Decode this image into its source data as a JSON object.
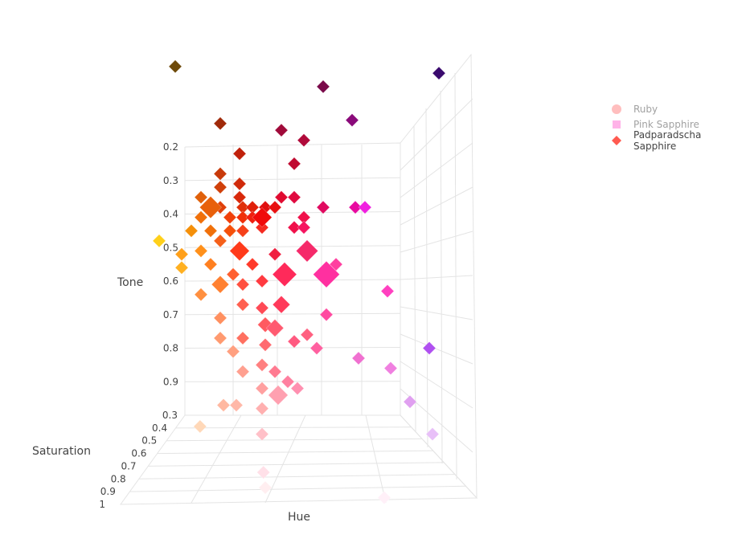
{
  "chart_data": {
    "type": "scatter3d",
    "axes": {
      "x": {
        "title": "Hue",
        "ticks": []
      },
      "y": {
        "title": "Saturation",
        "ticks": [
          "0.3",
          "0.4",
          "0.5",
          "0.6",
          "0.7",
          "0.8",
          "0.9",
          "1"
        ],
        "range": [
          0.3,
          1
        ]
      },
      "z": {
        "title": "Tone",
        "ticks": [
          "0.2",
          "0.3",
          "0.4",
          "0.5",
          "0.6",
          "0.7",
          "0.8",
          "0.9"
        ],
        "reversed": true
      }
    },
    "grid": true,
    "legend": {
      "placement": "top-right",
      "entries": [
        {
          "name": "Ruby",
          "symbol": "circle",
          "color": "#ff7f7f",
          "visible": false
        },
        {
          "name": "Pink Sapphire",
          "symbol": "square",
          "color": "#ff69d2",
          "visible": false
        },
        {
          "name": "Padparadscha Sapphire",
          "symbol": "diamond",
          "color": "#ff5a50",
          "visible": true
        }
      ]
    },
    "series": [
      {
        "name": "Padparadscha Sapphire",
        "symbol": "diamond",
        "columns": [
          "hue",
          "saturation",
          "tone",
          "size",
          "color"
        ],
        "points": [
          [
            0.07,
            0.3,
            -0.04,
            10,
            "#6e4a0a"
          ],
          [
            0.53,
            0.3,
            0.02,
            10,
            "#7a0a4a"
          ],
          [
            0.89,
            0.3,
            -0.02,
            10,
            "#3a0a6e"
          ],
          [
            0.21,
            0.3,
            0.13,
            10,
            "#a02a0a"
          ],
          [
            0.4,
            0.3,
            0.15,
            10,
            "#a00a3a"
          ],
          [
            0.47,
            0.3,
            0.18,
            10,
            "#b00a3a"
          ],
          [
            0.62,
            0.3,
            0.12,
            10,
            "#8a0a7a"
          ],
          [
            0.27,
            0.3,
            0.22,
            10,
            "#c0200a"
          ],
          [
            0.44,
            0.3,
            0.25,
            10,
            "#c00a30"
          ],
          [
            0.21,
            0.3,
            0.28,
            10,
            "#c83a0a"
          ],
          [
            0.21,
            0.3,
            0.32,
            10,
            "#d0400a"
          ],
          [
            0.27,
            0.3,
            0.31,
            10,
            "#d02a0a"
          ],
          [
            0.15,
            0.3,
            0.35,
            10,
            "#e0600a"
          ],
          [
            0.27,
            0.3,
            0.35,
            10,
            "#d8280a"
          ],
          [
            0.4,
            0.3,
            0.35,
            10,
            "#e00a30"
          ],
          [
            0.44,
            0.3,
            0.35,
            10,
            "#e00a40"
          ],
          [
            0.18,
            0.3,
            0.38,
            18,
            "#e8600a"
          ],
          [
            0.15,
            0.3,
            0.41,
            10,
            "#f0700a"
          ],
          [
            0.21,
            0.3,
            0.38,
            10,
            "#e0400a"
          ],
          [
            0.28,
            0.3,
            0.38,
            10,
            "#e0300a"
          ],
          [
            0.31,
            0.3,
            0.38,
            10,
            "#e0200a"
          ],
          [
            0.35,
            0.3,
            0.38,
            10,
            "#e01010"
          ],
          [
            0.38,
            0.3,
            0.38,
            10,
            "#e81010"
          ],
          [
            0.34,
            0.3,
            0.41,
            16,
            "#f00a0a"
          ],
          [
            0.24,
            0.3,
            0.41,
            10,
            "#f0400a"
          ],
          [
            0.28,
            0.3,
            0.41,
            10,
            "#f0300a"
          ],
          [
            0.31,
            0.3,
            0.41,
            10,
            "#f02010"
          ],
          [
            0.47,
            0.3,
            0.41,
            10,
            "#f0104a"
          ],
          [
            0.53,
            0.3,
            0.38,
            10,
            "#e00a60"
          ],
          [
            0.63,
            0.3,
            0.38,
            10,
            "#e80aa0"
          ],
          [
            0.66,
            0.3,
            0.38,
            10,
            "#f020e0"
          ],
          [
            0.12,
            0.3,
            0.45,
            10,
            "#f5900a"
          ],
          [
            0.18,
            0.3,
            0.45,
            10,
            "#f0700a"
          ],
          [
            0.24,
            0.3,
            0.45,
            10,
            "#f5500a"
          ],
          [
            0.28,
            0.3,
            0.45,
            10,
            "#f5401a"
          ],
          [
            0.34,
            0.3,
            0.44,
            10,
            "#f52a20"
          ],
          [
            0.44,
            0.3,
            0.44,
            10,
            "#f0104a"
          ],
          [
            0.47,
            0.3,
            0.44,
            10,
            "#f51560"
          ],
          [
            0.02,
            0.3,
            0.48,
            10,
            "#ffd01a"
          ],
          [
            0.21,
            0.3,
            0.48,
            10,
            "#f5601a"
          ],
          [
            0.27,
            0.3,
            0.51,
            16,
            "#ff3a1a"
          ],
          [
            0.09,
            0.3,
            0.52,
            10,
            "#ffa01a"
          ],
          [
            0.15,
            0.3,
            0.51,
            10,
            "#ff901a"
          ],
          [
            0.48,
            0.3,
            0.51,
            18,
            "#f52a6a"
          ],
          [
            0.38,
            0.3,
            0.52,
            10,
            "#f02040"
          ],
          [
            0.18,
            0.3,
            0.55,
            10,
            "#ff8020"
          ],
          [
            0.31,
            0.3,
            0.55,
            10,
            "#ff3a2a"
          ],
          [
            0.41,
            0.3,
            0.58,
            20,
            "#ff2a5a"
          ],
          [
            0.54,
            0.3,
            0.58,
            22,
            "#ff30a0"
          ],
          [
            0.09,
            0.3,
            0.56,
            10,
            "#ffb020"
          ],
          [
            0.57,
            0.3,
            0.55,
            10,
            "#ff40a0"
          ],
          [
            0.21,
            0.3,
            0.61,
            14,
            "#ff8030"
          ],
          [
            0.25,
            0.3,
            0.58,
            10,
            "#ff6030"
          ],
          [
            0.15,
            0.3,
            0.64,
            10,
            "#ff9040"
          ],
          [
            0.28,
            0.3,
            0.61,
            10,
            "#ff5040"
          ],
          [
            0.34,
            0.3,
            0.6,
            10,
            "#ff3a40"
          ],
          [
            0.4,
            0.3,
            0.67,
            14,
            "#ff3a5a"
          ],
          [
            0.73,
            0.3,
            0.63,
            10,
            "#ff40c0"
          ],
          [
            0.28,
            0.3,
            0.67,
            10,
            "#ff6050"
          ],
          [
            0.34,
            0.3,
            0.68,
            10,
            "#ff4a55"
          ],
          [
            0.21,
            0.3,
            0.71,
            10,
            "#ff9060"
          ],
          [
            0.54,
            0.3,
            0.7,
            10,
            "#ff4aa0"
          ],
          [
            0.35,
            0.3,
            0.73,
            12,
            "#ff5a60"
          ],
          [
            0.38,
            0.3,
            0.74,
            14,
            "#ff5a70"
          ],
          [
            0.21,
            0.3,
            0.77,
            10,
            "#ff9a70"
          ],
          [
            0.48,
            0.3,
            0.76,
            10,
            "#ff6080"
          ],
          [
            0.28,
            0.3,
            0.77,
            10,
            "#ff7060"
          ],
          [
            0.44,
            0.3,
            0.78,
            10,
            "#ff5a80"
          ],
          [
            0.35,
            0.3,
            0.79,
            10,
            "#ff6a70"
          ],
          [
            0.51,
            0.3,
            0.8,
            10,
            "#ff60a0"
          ],
          [
            0.86,
            0.3,
            0.8,
            10,
            "#b050f0"
          ],
          [
            0.64,
            0.3,
            0.83,
            10,
            "#f070d0"
          ],
          [
            0.25,
            0.3,
            0.81,
            10,
            "#ffa080"
          ],
          [
            0.28,
            0.3,
            0.87,
            10,
            "#ffa090"
          ],
          [
            0.34,
            0.3,
            0.85,
            10,
            "#ff8080"
          ],
          [
            0.38,
            0.3,
            0.87,
            10,
            "#ff7a90"
          ],
          [
            0.74,
            0.3,
            0.86,
            10,
            "#f080e0"
          ],
          [
            0.42,
            0.3,
            0.9,
            10,
            "#ff80a0"
          ],
          [
            0.34,
            0.3,
            0.92,
            10,
            "#ffa0a0"
          ],
          [
            0.39,
            0.3,
            0.94,
            16,
            "#ffa0b0"
          ],
          [
            0.45,
            0.3,
            0.92,
            10,
            "#ff90b0"
          ],
          [
            0.22,
            0.3,
            0.97,
            10,
            "#ffb8a0"
          ],
          [
            0.26,
            0.3,
            0.97,
            10,
            "#ffb8a8"
          ],
          [
            0.34,
            0.3,
            0.98,
            10,
            "#ffb0b0"
          ],
          [
            0.8,
            0.3,
            0.96,
            10,
            "#e0a0f0"
          ],
          [
            0.21,
            0.52,
            0.95,
            10,
            "#ffd8b8"
          ],
          [
            0.95,
            0.58,
            0.95,
            10,
            "#e8c0f8"
          ],
          [
            0.42,
            0.58,
            0.95,
            10,
            "#ffc0c8"
          ],
          [
            0.51,
            0.88,
            0.95,
            10,
            "#ffe0e8"
          ],
          [
            0.55,
            1.0,
            0.95,
            10,
            "#ffeef0"
          ],
          [
            0.92,
            1.0,
            0.98,
            10,
            "#fff0f8"
          ]
        ]
      }
    ]
  }
}
